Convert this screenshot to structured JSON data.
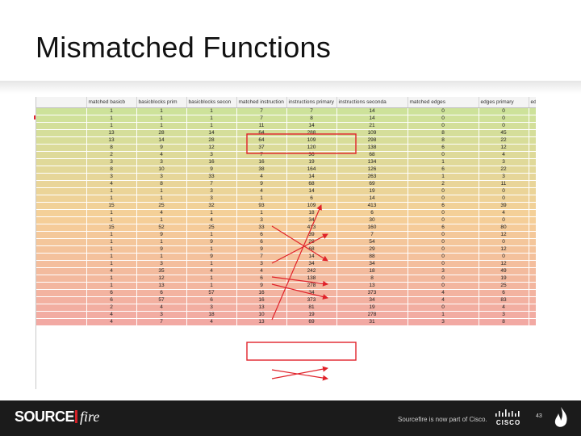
{
  "slide": {
    "title": "Mismatched Functions",
    "page_number": "43"
  },
  "footer": {
    "logo_source": "SOURCE",
    "logo_fire": "fire",
    "tagline": "Sourcefire is now part of Cisco.",
    "cisco_wordmark": "CISCO"
  },
  "table": {
    "columns": [
      "matched basicb",
      "basicblocks prim",
      "basicblocks secon",
      "matched instruction",
      "instructions primary",
      "instructions seconda",
      "matched edges",
      "edges primary",
      "edges seco"
    ],
    "rows": [
      [
        "1",
        "1",
        "1",
        "7",
        "7",
        "14",
        "0",
        "0",
        "0"
      ],
      [
        "1",
        "1",
        "1",
        "7",
        "8",
        "14",
        "0",
        "0",
        "0"
      ],
      [
        "1",
        "1",
        "1",
        "11",
        "14",
        "21",
        "0",
        "0",
        "0"
      ],
      [
        "13",
        "28",
        "14",
        "64",
        "288",
        "109",
        "8",
        "45",
        "22"
      ],
      [
        "13",
        "14",
        "28",
        "64",
        "109",
        "298",
        "8",
        "22",
        "45"
      ],
      [
        "8",
        "9",
        "12",
        "37",
        "120",
        "138",
        "6",
        "12",
        "19"
      ],
      [
        "2",
        "4",
        "3",
        "7",
        "36",
        "68",
        "0",
        "4",
        "11"
      ],
      [
        "3",
        "3",
        "16",
        "16",
        "19",
        "134",
        "1",
        "3",
        "22"
      ],
      [
        "8",
        "10",
        "9",
        "38",
        "164",
        "126",
        "6",
        "22",
        "12"
      ],
      [
        "3",
        "3",
        "33",
        "4",
        "14",
        "263",
        "1",
        "3",
        "42"
      ],
      [
        "4",
        "8",
        "7",
        "9",
        "68",
        "69",
        "2",
        "11",
        "8"
      ],
      [
        "1",
        "1",
        "3",
        "4",
        "14",
        "19",
        "0",
        "0",
        "3"
      ],
      [
        "1",
        "1",
        "3",
        "1",
        "6",
        "14",
        "0",
        "0",
        "3"
      ],
      [
        "15",
        "25",
        "32",
        "93",
        "109",
        "413",
        "6",
        "39",
        "80"
      ],
      [
        "1",
        "4",
        "1",
        "1",
        "18",
        "6",
        "0",
        "4",
        "0"
      ],
      [
        "1",
        "1",
        "4",
        "3",
        "34",
        "30",
        "0",
        "0",
        "4"
      ],
      [
        "15",
        "52",
        "25",
        "33",
        "413",
        "160",
        "6",
        "80",
        "39"
      ],
      [
        "1",
        "9",
        "1",
        "6",
        "39",
        "7",
        "0",
        "12",
        "0"
      ],
      [
        "1",
        "1",
        "9",
        "6",
        "28",
        "54",
        "0",
        "0",
        "12"
      ],
      [
        "1",
        "9",
        "1",
        "9",
        "68",
        "29",
        "0",
        "12",
        "0"
      ],
      [
        "1",
        "1",
        "9",
        "7",
        "14",
        "88",
        "0",
        "0",
        "12"
      ],
      [
        "1",
        "3",
        "1",
        "3",
        "34",
        "34",
        "0",
        "12",
        "0"
      ],
      [
        "4",
        "35",
        "4",
        "4",
        "242",
        "18",
        "3",
        "49",
        "4"
      ],
      [
        "1",
        "12",
        "1",
        "6",
        "138",
        "8",
        "0",
        "19",
        "0"
      ],
      [
        "1",
        "13",
        "1",
        "9",
        "278",
        "13",
        "0",
        "25",
        "0"
      ],
      [
        "6",
        "6",
        "57",
        "16",
        "34",
        "373",
        "4",
        "6",
        "83"
      ],
      [
        "6",
        "57",
        "6",
        "16",
        "373",
        "34",
        "4",
        "83",
        "6"
      ],
      [
        "2",
        "4",
        "3",
        "13",
        "81",
        "19",
        "0",
        "4",
        "3"
      ],
      [
        "4",
        "3",
        "18",
        "10",
        "19",
        "278",
        "1",
        "3",
        "25"
      ],
      [
        "4",
        "7",
        "4",
        "13",
        "69",
        "31",
        "3",
        "8",
        "4"
      ]
    ]
  },
  "colors": {
    "row_top": "#cde29a",
    "row_mid": "#f5cf98",
    "row_bottom": "#f2a9a3",
    "highlight_red": "#e0222a",
    "footer_bg": "#1b1b1b",
    "logo_red": "#d32027"
  }
}
